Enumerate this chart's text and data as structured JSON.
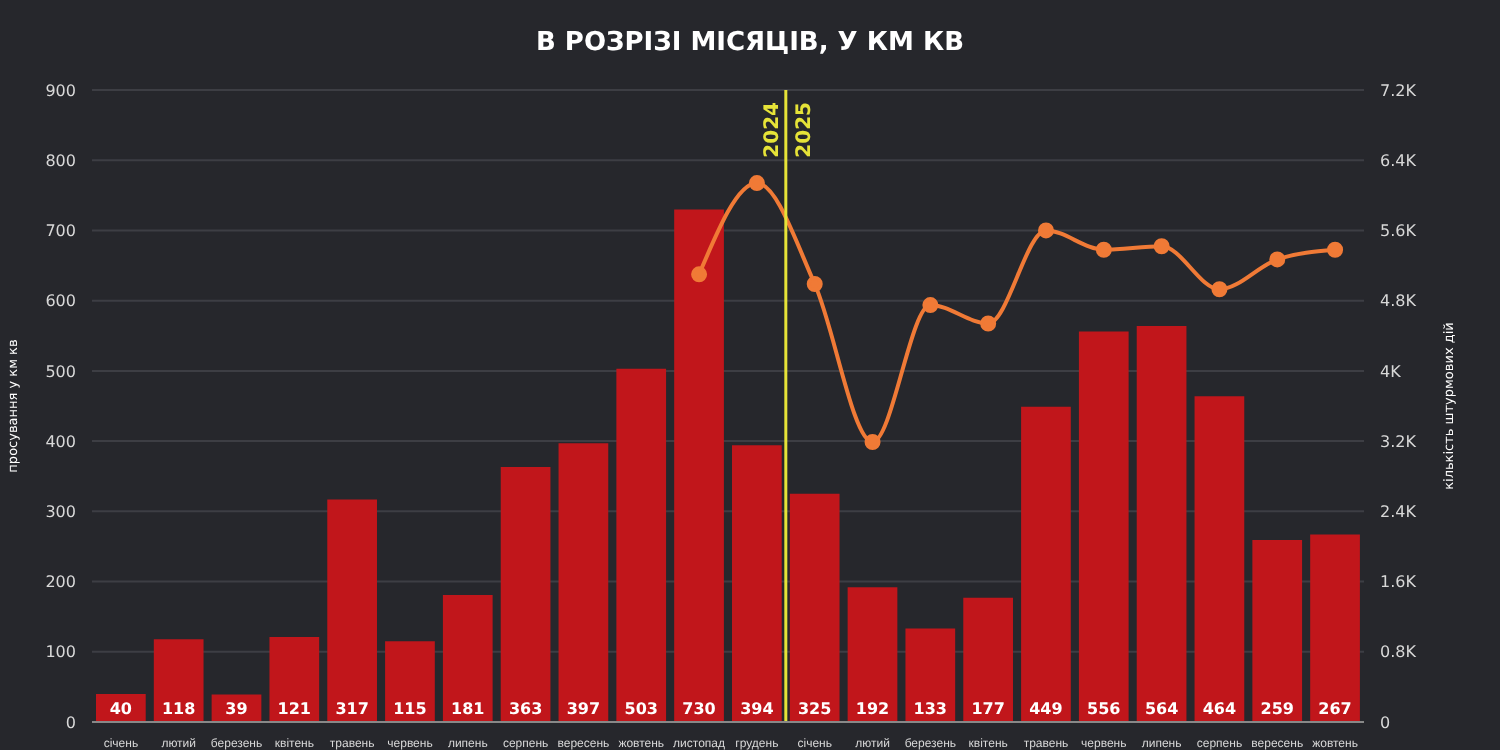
{
  "chart_data": {
    "type": "bar",
    "subtitle": "В РОЗРІЗІ МІСЯЦІВ, У КМ КВ",
    "ylabel": "просування у км кв",
    "y2label": "кількість штурмових дій",
    "categories": [
      "січень",
      "лютий",
      "березень",
      "квітень",
      "травень",
      "червень",
      "липень",
      "серпень",
      "вересень",
      "жовтень",
      "листопад",
      "грудень",
      "січень",
      "лютий",
      "березень",
      "квітень",
      "травень",
      "червень",
      "липень",
      "серпень",
      "вересень",
      "жовтень"
    ],
    "series": [
      {
        "color": "#c1161b",
        "values": [
          40,
          118,
          39,
          121,
          317,
          115,
          181,
          363,
          397,
          503,
          730,
          394,
          325,
          192,
          133,
          177,
          449,
          556,
          564,
          464,
          259,
          267
        ],
        "value_labels": [
          "40",
          "118",
          "39",
          "121",
          "317",
          "115",
          "181",
          "363",
          "397",
          "503",
          "730",
          "394",
          "325",
          "192",
          "133",
          "177",
          "449",
          "556",
          "564",
          "464",
          "259",
          "267"
        ]
      },
      {
        "type": "line",
        "axis": "y2",
        "color": "#f07a36",
        "marker": "circle",
        "values": [
          null,
          null,
          null,
          null,
          null,
          null,
          null,
          null,
          null,
          null,
          5100,
          6140,
          4990,
          3190,
          4750,
          4540,
          5600,
          5380,
          5420,
          4930,
          5270,
          5380
        ]
      }
    ],
    "ylim": [
      0,
      900
    ],
    "yticks": [
      0,
      100,
      200,
      300,
      400,
      500,
      600,
      700,
      800,
      900
    ],
    "y2lim": [
      0,
      7200
    ],
    "y2ticks": [
      0,
      {
        "value": 800,
        "label": "0.8K"
      },
      {
        "value": 1600,
        "label": "1.6K"
      },
      {
        "value": 2400,
        "label": "2.4K"
      },
      {
        "value": 3200,
        "label": "3.2K"
      },
      {
        "value": 4000,
        "label": "4K"
      },
      {
        "value": 4800,
        "label": "4.8K"
      },
      {
        "value": 5600,
        "label": "5.6K"
      },
      {
        "value": 6400,
        "label": "6.4K"
      },
      {
        "value": 7200,
        "label": "7.2K"
      }
    ],
    "ref_lines": [
      {
        "axis": "x",
        "value": "грудень",
        "color": "#e6e338"
      }
    ],
    "annotations": [
      "2024",
      "2025"
    ],
    "grid": "y",
    "legend": false
  }
}
